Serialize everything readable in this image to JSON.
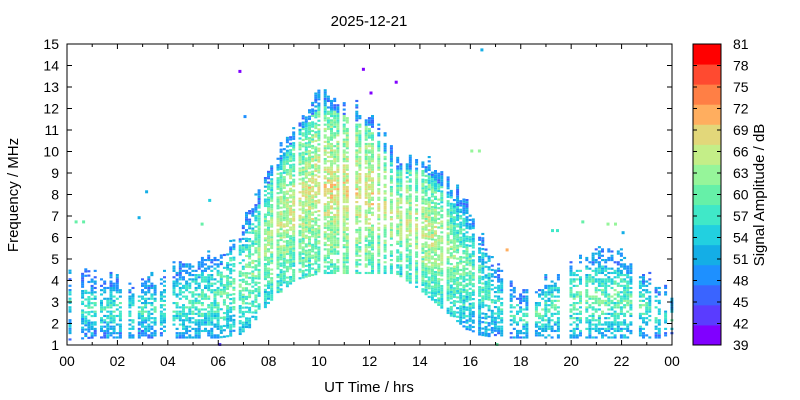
{
  "chart_data": {
    "type": "heatmap",
    "title": "2025-12-21",
    "xlabel": "UT Time / hrs",
    "ylabel": "Frequency / MHz",
    "xlim": [
      0,
      24
    ],
    "ylim": [
      1,
      15
    ],
    "x_tick_labels": [
      "00",
      "02",
      "04",
      "06",
      "08",
      "10",
      "12",
      "14",
      "16",
      "18",
      "20",
      "22",
      "00"
    ],
    "y_tick_labels": [
      "1",
      "2",
      "3",
      "4",
      "5",
      "6",
      "7",
      "8",
      "9",
      "10",
      "11",
      "12",
      "13",
      "14",
      "15"
    ],
    "colorbar": {
      "label": "Signal Amplitude / dB",
      "min": 39,
      "max": 81,
      "tick_labels": [
        "39",
        "42",
        "45",
        "48",
        "51",
        "54",
        "57",
        "60",
        "63",
        "66",
        "69",
        "72",
        "75",
        "78",
        "81"
      ],
      "colors": [
        "#8000ff",
        "#5a3cff",
        "#3a64ff",
        "#1e90ff",
        "#14aee6",
        "#22d0e0",
        "#40e8c8",
        "#66f0a8",
        "#96f59a",
        "#c4ee88",
        "#e2d77a",
        "#ffae5f",
        "#ff7f45",
        "#ff4a30",
        "#ff0000"
      ]
    },
    "grid": false,
    "profile": {
      "hours": [
        0,
        1,
        2,
        3,
        4,
        5,
        6,
        7,
        8,
        9,
        10,
        11,
        12,
        13,
        14,
        15,
        16,
        17,
        18,
        19,
        20,
        21,
        22,
        23,
        24
      ],
      "max_freq_mhz": [
        4.5,
        4.0,
        3.8,
        3.8,
        4.3,
        4.6,
        5.0,
        6.5,
        9.0,
        11.0,
        12.5,
        12.0,
        11.5,
        9.5,
        9.5,
        8.5,
        7.0,
        4.5,
        3.0,
        4.0,
        4.8,
        5.0,
        5.0,
        4.0,
        3.0
      ],
      "min_freq_mhz": [
        1.2,
        1.3,
        1.3,
        1.3,
        1.3,
        1.3,
        1.3,
        1.5,
        3.0,
        4.0,
        4.3,
        4.3,
        4.3,
        4.3,
        3.5,
        2.5,
        1.5,
        1.3,
        1.3,
        1.3,
        1.3,
        1.3,
        1.3,
        1.3,
        1.3
      ],
      "peak_amplitude_db": [
        57,
        58,
        58,
        57,
        58,
        59,
        60,
        62,
        64,
        66,
        67,
        68,
        67,
        65,
        66,
        64,
        60,
        57,
        58,
        59,
        60,
        61,
        60,
        58,
        57
      ]
    },
    "outliers": [
      {
        "hour": 6.8,
        "freq_mhz": 13.7,
        "amplitude_db": 40
      },
      {
        "hour": 7.0,
        "freq_mhz": 11.6,
        "amplitude_db": 50
      },
      {
        "hour": 11.7,
        "freq_mhz": 13.8,
        "amplitude_db": 40
      },
      {
        "hour": 13.0,
        "freq_mhz": 13.2,
        "amplitude_db": 40
      },
      {
        "hour": 12.0,
        "freq_mhz": 12.7,
        "amplitude_db": 40
      },
      {
        "hour": 16.4,
        "freq_mhz": 14.7,
        "amplitude_db": 52
      },
      {
        "hour": 16.0,
        "freq_mhz": 10.0,
        "amplitude_db": 62
      },
      {
        "hour": 16.3,
        "freq_mhz": 10.0,
        "amplitude_db": 62
      },
      {
        "hour": 3.1,
        "freq_mhz": 8.1,
        "amplitude_db": 52
      },
      {
        "hour": 2.8,
        "freq_mhz": 6.9,
        "amplitude_db": 52
      },
      {
        "hour": 0.3,
        "freq_mhz": 6.7,
        "amplitude_db": 60
      },
      {
        "hour": 0.6,
        "freq_mhz": 6.7,
        "amplitude_db": 60
      },
      {
        "hour": 5.6,
        "freq_mhz": 7.7,
        "amplitude_db": 55
      },
      {
        "hour": 5.3,
        "freq_mhz": 6.6,
        "amplitude_db": 60
      },
      {
        "hour": 17.4,
        "freq_mhz": 5.4,
        "amplitude_db": 70
      },
      {
        "hour": 19.2,
        "freq_mhz": 6.3,
        "amplitude_db": 57
      },
      {
        "hour": 19.4,
        "freq_mhz": 6.3,
        "amplitude_db": 57
      },
      {
        "hour": 20.4,
        "freq_mhz": 6.7,
        "amplitude_db": 60
      },
      {
        "hour": 21.4,
        "freq_mhz": 6.6,
        "amplitude_db": 62
      },
      {
        "hour": 21.7,
        "freq_mhz": 6.6,
        "amplitude_db": 62
      },
      {
        "hour": 22.0,
        "freq_mhz": 6.2,
        "amplitude_db": 52
      },
      {
        "hour": 6.0,
        "freq_mhz": 1.0,
        "amplitude_db": 42
      },
      {
        "hour": 17.0,
        "freq_mhz": 1.0,
        "amplitude_db": 60
      }
    ]
  }
}
